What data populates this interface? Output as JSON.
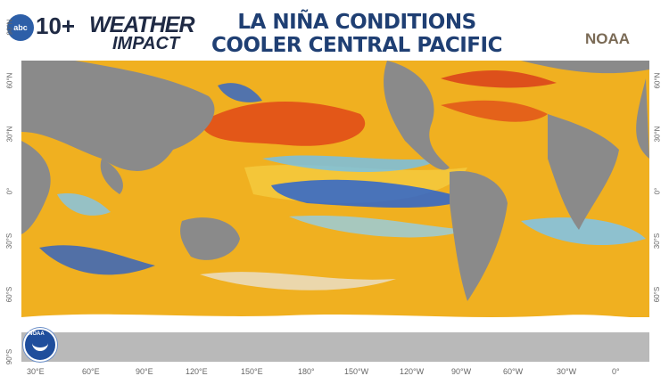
{
  "header": {
    "logo_badge": "abc",
    "logo_num": "10+",
    "logo_weather": "WEATHER",
    "logo_impact": "IMPACT",
    "title_line1": "LA NIÑA CONDITIONS",
    "title_line2": "COOLER CENTRAL PACIFIC",
    "source": "NOAA"
  },
  "lat_labels_left": [
    "90°N",
    "60°N",
    "30°N",
    "0°",
    "30°S",
    "60°S",
    "90°S"
  ],
  "lat_labels_right": [
    "60°N",
    "30°N",
    "0°",
    "30°S",
    "60°S"
  ],
  "lon_labels": [
    "30°E",
    "60°E",
    "90°E",
    "120°E",
    "150°E",
    "180°",
    "150°W",
    "120°W",
    "90°W",
    "60°W",
    "30°W",
    "0°"
  ],
  "seal": {
    "label": "NOAA"
  },
  "colors": {
    "land": "#8a8a8a",
    "warm": "#f0b020",
    "hot": "#e04818",
    "cool": "#60b8f0",
    "cold": "#1f56c8",
    "ice": "#ffffff"
  }
}
